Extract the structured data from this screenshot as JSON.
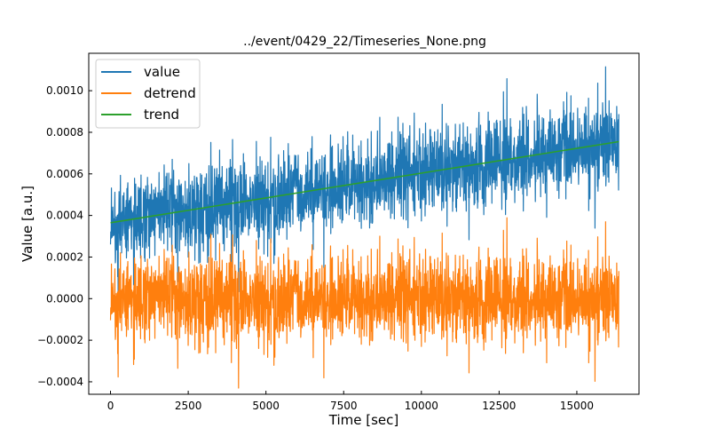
{
  "chart_data": {
    "type": "line",
    "title": "../event/0429_22/Timeseries_None.png",
    "xlabel": "Time [sec]",
    "ylabel": "Value [a.u.]",
    "xlim": [
      -700,
      17000
    ],
    "ylim": [
      -0.00046,
      0.00118
    ],
    "x_ticks": [
      0,
      2500,
      5000,
      7500,
      10000,
      12500,
      15000
    ],
    "x_tick_labels": [
      "0",
      "2500",
      "5000",
      "7500",
      "10000",
      "12500",
      "15000"
    ],
    "y_ticks": [
      -0.0004,
      -0.0002,
      0.0,
      0.0002,
      0.0004,
      0.0006,
      0.0008,
      0.001
    ],
    "y_tick_labels": [
      "−0.0004",
      "−0.0002",
      "0.0000",
      "0.0002",
      "0.0004",
      "0.0006",
      "0.0008",
      "0.0010"
    ],
    "grid": false,
    "legend_position": "top-left",
    "x_range": [
      0,
      16350
    ],
    "series": [
      {
        "name": "value",
        "color": "#1f77b4",
        "description": "noisy signal, rising mean",
        "mean_start": 0.000365,
        "mean_end": 0.000755,
        "min_approx": 0.00015,
        "max_approx": 0.00109
      },
      {
        "name": "detrend",
        "color": "#ff7f0e",
        "description": "value minus trend",
        "mean": 0.0,
        "min_approx": -0.00043,
        "max_approx": 0.00042
      },
      {
        "name": "trend",
        "color": "#2ca02c",
        "x": [
          0,
          16350
        ],
        "values": [
          0.000365,
          0.000755
        ]
      }
    ]
  }
}
